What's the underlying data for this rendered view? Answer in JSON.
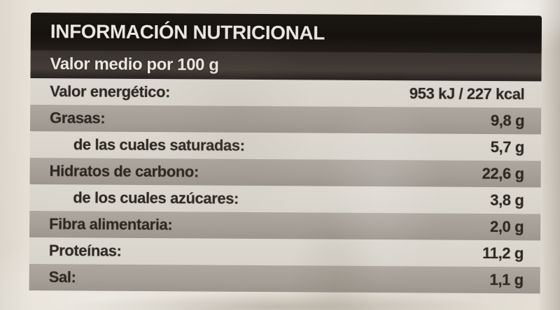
{
  "label": {
    "title": "INFORMACIÓN NUTRICIONAL",
    "subtitle": "Valor medio por 100 g",
    "rows": [
      {
        "name": "Valor energético:",
        "value": "953 kJ / 227 kcal"
      },
      {
        "name": "Grasas:",
        "value": "9,8 g"
      },
      {
        "name": "de las cuales saturadas:",
        "value": "5,7 g"
      },
      {
        "name": "Hidratos de carbono:",
        "value": "22,6 g"
      },
      {
        "name": "de los cuales azúcares:",
        "value": "3,8 g"
      },
      {
        "name": "Fibra alimentaria:",
        "value": "2,0 g"
      },
      {
        "name": "Proteínas:",
        "value": "11,2 g"
      },
      {
        "name": "Sal:",
        "value": "1,1 g"
      }
    ]
  },
  "colors": {
    "page-bg": "#e6e1d7",
    "header-bg": "#17130f",
    "subheader-bg": "#3c3631",
    "row-gray": "#a7a199",
    "row-light": "#dad6ce",
    "ink": "#2e2822",
    "text-light": "#ece8e0"
  }
}
